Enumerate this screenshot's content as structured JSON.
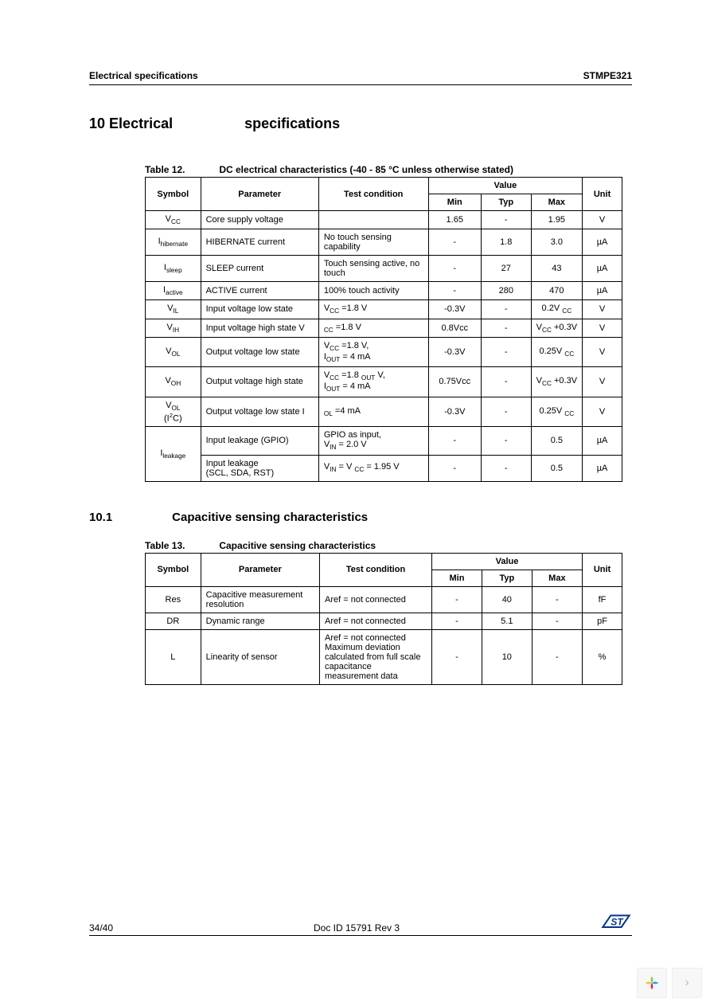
{
  "header": {
    "left": "Electrical specifications",
    "right": "STMPE321"
  },
  "section": {
    "number": "10",
    "title_a": "Electrical",
    "title_b": "specifications"
  },
  "table12": {
    "caption_num": "Table 12.",
    "caption_txt": "DC electrical characteristics (-40 - 85 °C unless otherwise stated)",
    "head": {
      "symbol": "Symbol",
      "parameter": "Parameter",
      "condition": "Test condition",
      "value": "Value",
      "min": "Min",
      "typ": "Typ",
      "max": "Max",
      "unit": "Unit"
    },
    "rows": [
      {
        "symbol": "V<sub>CC</sub>",
        "param": "Core supply voltage",
        "cond": "",
        "min": "1.65",
        "typ": "-",
        "max": "1.95",
        "unit": "V"
      },
      {
        "symbol": "I<sub>hibernate</sub>",
        "param": "HIBERNATE current",
        "cond": "No touch sensing capability",
        "min": "-",
        "typ": "1.8",
        "max": "3.0",
        "unit": "µA"
      },
      {
        "symbol": "I<sub>sleep</sub>",
        "param": "SLEEP current",
        "cond": "Touch sensing active, no touch",
        "min": "-",
        "typ": "27",
        "max": "43",
        "unit": "µA"
      },
      {
        "symbol": "I<sub>active</sub>",
        "param": "ACTIVE current",
        "cond": "100% touch activity",
        "min": "-",
        "typ": "280",
        "max": "470",
        "unit": "µA"
      },
      {
        "symbol": "V<sub>IL</sub>",
        "param": "Input voltage low state",
        "cond": "V<sub>CC</sub> =1.8 V",
        "min": "-0.3V",
        "typ": "-",
        "max": "0.2V <sub>CC</sub>",
        "unit": "V"
      },
      {
        "symbol": "V<sub>IH</sub>",
        "param": "Input voltage high state V",
        "cond": "<sub>CC</sub> =1.8 V",
        "min": "0.8Vcc",
        "typ": "-",
        "max": "V<sub>CC</sub> +0.3V",
        "unit": "V"
      },
      {
        "symbol": "V<sub>OL</sub>",
        "param": "Output voltage low state",
        "cond": "V<sub>CC</sub> =1.8 V,<br>I<sub>OUT</sub> = 4 mA",
        "min": "-0.3V",
        "typ": "-",
        "max": "0.25V <sub>CC</sub>",
        "unit": "V"
      },
      {
        "symbol": "V<sub>OH</sub>",
        "param": "Output voltage high state",
        "cond": "V<sub>CC</sub> =1.8 <sub>OUT</sub> V,<br>I<sub>OUT</sub> = 4 mA",
        "min": "0.75Vcc",
        "typ": "-",
        "max": "V<sub>CC</sub> +0.3V",
        "unit": "V"
      },
      {
        "symbol": "V<sub>OL</sub><br>(I<sup>2</sup>C)",
        "param": "Output voltage low state I",
        "cond": "<sub>OL</sub> =4 mA",
        "min": "-0.3V",
        "typ": "-",
        "max": "0.25V <sub>CC</sub>",
        "unit": "V"
      },
      {
        "symbol": "",
        "param": "Input leakage (GPIO)",
        "cond": "GPIO as input,<br>V<sub>IN</sub> = 2.0 V",
        "min": "-",
        "typ": "-",
        "max": "0.5",
        "unit": "µA"
      },
      {
        "symbol": "I<sub>leakage</sub>",
        "param": "Input leakage<br>(SCL, SDA, RST)",
        "cond": "V<sub>IN</sub> = V <sub>CC</sub> = 1.95 V",
        "min": "-",
        "typ": "-",
        "max": "0.5",
        "unit": "µA"
      }
    ]
  },
  "subsection": {
    "number": "10.1",
    "title": "Capacitive sensing characteristics"
  },
  "table13": {
    "caption_num": "Table 13.",
    "caption_txt": "Capacitive sensing characteristics",
    "head": {
      "symbol": "Symbol",
      "parameter": "Parameter",
      "condition": "Test condition",
      "value": "Value",
      "min": "Min",
      "typ": "Typ",
      "max": "Max",
      "unit": "Unit"
    },
    "rows": [
      {
        "symbol": "Res",
        "param": "Capacitive measurement resolution",
        "cond": "Aref = not connected",
        "min": "-",
        "typ": "40",
        "max": "-",
        "unit": "fF"
      },
      {
        "symbol": "DR",
        "param": "Dynamic range",
        "cond": "Aref = not connected",
        "min": "-",
        "typ": "5.1",
        "max": "-",
        "unit": "pF"
      },
      {
        "symbol": "L",
        "param": "Linearity of sensor",
        "cond": "Aref = not connected<br>Maximum deviation calculated from full scale capacitance measurement data",
        "min": "-",
        "typ": "10",
        "max": "-",
        "unit": "%"
      }
    ]
  },
  "footer": {
    "page": "34/40",
    "docid": "Doc ID 15791 Rev 3"
  },
  "nav": {
    "chevron": "›"
  }
}
